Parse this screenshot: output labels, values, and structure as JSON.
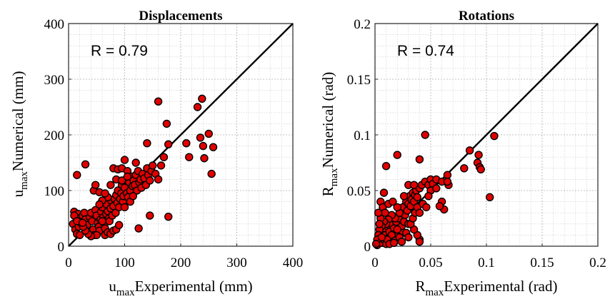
{
  "figure": {
    "panel_left": {
      "title": "Displacements",
      "r_annotation": "R = 0.79",
      "x_label_sub": "max",
      "x_label_main": "Experimental (mm)",
      "y_label_sub": "max",
      "y_label_main": "Numerical (mm)"
    },
    "panel_right": {
      "title": "Rotations",
      "r_annotation": "R = 0.74",
      "x_label_sub": "max",
      "x_label_main": "Experimental (rad)",
      "y_label_sub": "max",
      "y_label_main": "Numerical (rad)"
    }
  },
  "chart_data": [
    {
      "type": "scatter",
      "title": "Displacements",
      "xlabel": "u_max Experimental (mm)",
      "ylabel": "u_max Numerical (mm)",
      "xlim": [
        0,
        400
      ],
      "ylim": [
        0,
        400
      ],
      "xticks": [
        "0",
        "100",
        "200",
        "300",
        "400"
      ],
      "yticks": [
        "0",
        "100",
        "200",
        "300",
        "400"
      ],
      "grid": true,
      "reference_line": "y = x",
      "annotation": "R = 0.79",
      "marker_color": "#e00000",
      "points": [
        [
          15,
          128
        ],
        [
          30,
          147
        ],
        [
          10,
          62
        ],
        [
          14,
          45
        ],
        [
          17,
          58
        ],
        [
          20,
          50
        ],
        [
          8,
          40
        ],
        [
          12,
          30
        ],
        [
          15,
          22
        ],
        [
          18,
          35
        ],
        [
          22,
          42
        ],
        [
          25,
          55
        ],
        [
          28,
          60
        ],
        [
          30,
          48
        ],
        [
          33,
          38
        ],
        [
          36,
          25
        ],
        [
          38,
          52
        ],
        [
          40,
          60
        ],
        [
          42,
          45
        ],
        [
          44,
          30
        ],
        [
          46,
          20
        ],
        [
          48,
          65
        ],
        [
          50,
          55
        ],
        [
          52,
          42
        ],
        [
          54,
          35
        ],
        [
          55,
          28
        ],
        [
          57,
          48
        ],
        [
          58,
          62
        ],
        [
          60,
          70
        ],
        [
          62,
          52
        ],
        [
          64,
          40
        ],
        [
          65,
          32
        ],
        [
          67,
          58
        ],
        [
          68,
          75
        ],
        [
          70,
          63
        ],
        [
          72,
          50
        ],
        [
          73,
          45
        ],
        [
          75,
          68
        ],
        [
          76,
          82
        ],
        [
          78,
          55
        ],
        [
          80,
          72
        ],
        [
          82,
          85
        ],
        [
          84,
          60
        ],
        [
          85,
          92
        ],
        [
          87,
          78
        ],
        [
          88,
          100
        ],
        [
          90,
          70
        ],
        [
          92,
          85
        ],
        [
          94,
          95
        ],
        [
          95,
          110
        ],
        [
          97,
          80
        ],
        [
          98,
          90
        ],
        [
          100,
          105
        ],
        [
          102,
          120
        ],
        [
          104,
          95
        ],
        [
          106,
          88
        ],
        [
          108,
          115
        ],
        [
          110,
          100
        ],
        [
          112,
          125
        ],
        [
          114,
          108
        ],
        [
          116,
          118
        ],
        [
          118,
          110
        ],
        [
          120,
          128
        ],
        [
          122,
          100
        ],
        [
          124,
          135
        ],
        [
          126,
          115
        ],
        [
          128,
          120
        ],
        [
          130,
          105
        ],
        [
          132,
          130
        ],
        [
          135,
          122
        ],
        [
          138,
          110
        ],
        [
          140,
          140
        ],
        [
          142,
          128
        ],
        [
          145,
          118
        ],
        [
          148,
          135
        ],
        [
          150,
          145
        ],
        [
          155,
          130
        ],
        [
          160,
          120
        ],
        [
          165,
          145
        ],
        [
          170,
          160
        ],
        [
          80,
          140
        ],
        [
          88,
          138
        ],
        [
          95,
          140
        ],
        [
          100,
          155
        ],
        [
          105,
          135
        ],
        [
          120,
          150
        ],
        [
          125,
          32
        ],
        [
          145,
          55
        ],
        [
          178,
          53
        ],
        [
          175,
          220
        ],
        [
          160,
          260
        ],
        [
          178,
          183
        ],
        [
          140,
          185
        ],
        [
          210,
          185
        ],
        [
          215,
          160
        ],
        [
          230,
          250
        ],
        [
          235,
          195
        ],
        [
          238,
          265
        ],
        [
          240,
          180
        ],
        [
          242,
          158
        ],
        [
          250,
          202
        ],
        [
          255,
          130
        ],
        [
          258,
          178
        ],
        [
          60,
          45
        ],
        [
          50,
          20
        ],
        [
          40,
          18
        ],
        [
          35,
          22
        ],
        [
          30,
          28
        ],
        [
          26,
          35
        ],
        [
          20,
          20
        ],
        [
          10,
          55
        ],
        [
          15,
          45
        ],
        [
          25,
          42
        ],
        [
          45,
          100
        ],
        [
          48,
          110
        ],
        [
          55,
          97
        ],
        [
          65,
          20
        ],
        [
          70,
          25
        ],
        [
          75,
          22
        ],
        [
          80,
          28
        ],
        [
          85,
          30
        ],
        [
          90,
          38
        ],
        [
          75,
          110
        ],
        [
          85,
          120
        ],
        [
          95,
          118
        ],
        [
          105,
          125
        ],
        [
          70,
          88
        ],
        [
          60,
          82
        ],
        [
          65,
          95
        ],
        [
          55,
          75
        ],
        [
          100,
          70
        ],
        [
          110,
          80
        ],
        [
          115,
          90
        ]
      ]
    },
    {
      "type": "scatter",
      "title": "Rotations",
      "xlabel": "R_max Experimental (rad)",
      "ylabel": "R_max Numerical (rad)",
      "xlim": [
        0,
        0.2
      ],
      "ylim": [
        0,
        0.2
      ],
      "xticks": [
        "0",
        "0.05",
        "0.1",
        "0.15",
        "0.2"
      ],
      "yticks": [
        "0",
        "0.05",
        "0.1",
        "0.15",
        "0.2"
      ],
      "grid": true,
      "reference_line": "y = x",
      "annotation": "R = 0.74",
      "marker_color": "#e00000",
      "points": [
        [
          0.002,
          0.001
        ],
        [
          0.003,
          0.004
        ],
        [
          0.004,
          0.008
        ],
        [
          0.005,
          0.012
        ],
        [
          0.006,
          0.003
        ],
        [
          0.007,
          0.015
        ],
        [
          0.008,
          0.006
        ],
        [
          0.009,
          0.01
        ],
        [
          0.01,
          0.002
        ],
        [
          0.011,
          0.018
        ],
        [
          0.012,
          0.007
        ],
        [
          0.013,
          0.013
        ],
        [
          0.014,
          0.004
        ],
        [
          0.015,
          0.02
        ],
        [
          0.016,
          0.009
        ],
        [
          0.017,
          0.016
        ],
        [
          0.018,
          0.011
        ],
        [
          0.019,
          0.022
        ],
        [
          0.02,
          0.006
        ],
        [
          0.021,
          0.025
        ],
        [
          0.022,
          0.014
        ],
        [
          0.023,
          0.03
        ],
        [
          0.024,
          0.018
        ],
        [
          0.025,
          0.035
        ],
        [
          0.026,
          0.022
        ],
        [
          0.027,
          0.028
        ],
        [
          0.028,
          0.04
        ],
        [
          0.029,
          0.032
        ],
        [
          0.03,
          0.038
        ],
        [
          0.031,
          0.045
        ],
        [
          0.032,
          0.036
        ],
        [
          0.033,
          0.042
        ],
        [
          0.034,
          0.048
        ],
        [
          0.035,
          0.04
        ],
        [
          0.036,
          0.046
        ],
        [
          0.037,
          0.05
        ],
        [
          0.038,
          0.044
        ],
        [
          0.04,
          0.052
        ],
        [
          0.042,
          0.055
        ],
        [
          0.045,
          0.058
        ],
        [
          0.048,
          0.055
        ],
        [
          0.05,
          0.06
        ],
        [
          0.052,
          0.056
        ],
        [
          0.055,
          0.06
        ],
        [
          0.06,
          0.058
        ],
        [
          0.065,
          0.064
        ],
        [
          0.066,
          0.055
        ],
        [
          0.06,
          0.04
        ],
        [
          0.062,
          0.033
        ],
        [
          0.065,
          0.058
        ],
        [
          0.045,
          0.1
        ],
        [
          0.02,
          0.082
        ],
        [
          0.008,
          0.048
        ],
        [
          0.01,
          0.072
        ],
        [
          0.04,
          0.078
        ],
        [
          0.085,
          0.086
        ],
        [
          0.093,
          0.082
        ],
        [
          0.092,
          0.075
        ],
        [
          0.094,
          0.071
        ],
        [
          0.095,
          0.069
        ],
        [
          0.08,
          0.07
        ],
        [
          0.107,
          0.099
        ],
        [
          0.103,
          0.044
        ],
        [
          0.04,
          0.006
        ],
        [
          0.038,
          0.01
        ],
        [
          0.035,
          0.015
        ],
        [
          0.03,
          0.02
        ],
        [
          0.025,
          0.012
        ],
        [
          0.022,
          0.03
        ],
        [
          0.018,
          0.025
        ],
        [
          0.015,
          0.028
        ],
        [
          0.012,
          0.024
        ],
        [
          0.01,
          0.02
        ],
        [
          0.008,
          0.022
        ],
        [
          0.006,
          0.018
        ],
        [
          0.005,
          0.025
        ],
        [
          0.004,
          0.015
        ],
        [
          0.003,
          0.01
        ],
        [
          0.002,
          0.006
        ],
        [
          0.001,
          0.002
        ],
        [
          0.005,
          0.04
        ],
        [
          0.007,
          0.035
        ],
        [
          0.012,
          0.038
        ],
        [
          0.015,
          0.01
        ],
        [
          0.018,
          0.005
        ],
        [
          0.02,
          0.015
        ],
        [
          0.022,
          0.008
        ],
        [
          0.024,
          0.004
        ],
        [
          0.028,
          0.012
        ],
        [
          0.03,
          0.008
        ],
        [
          0.032,
          0.02
        ],
        [
          0.034,
          0.025
        ],
        [
          0.036,
          0.03
        ],
        [
          0.038,
          0.035
        ],
        [
          0.04,
          0.03
        ],
        [
          0.043,
          0.038
        ],
        [
          0.046,
          0.035
        ],
        [
          0.05,
          0.05
        ],
        [
          0.055,
          0.052
        ],
        [
          0.048,
          0.045
        ],
        [
          0.058,
          0.036
        ],
        [
          0.03,
          0.055
        ],
        [
          0.02,
          0.035
        ],
        [
          0.016,
          0.04
        ],
        [
          0.009,
          0.03
        ],
        [
          0.011,
          0.006
        ],
        [
          0.013,
          0.002
        ],
        [
          0.017,
          0.003
        ],
        [
          0.004,
          0.02
        ],
        [
          0.006,
          0.008
        ],
        [
          0.003,
          0.03
        ],
        [
          0.026,
          0.045
        ],
        [
          0.04,
          0.004
        ],
        [
          0.035,
          0.055
        ]
      ]
    }
  ]
}
